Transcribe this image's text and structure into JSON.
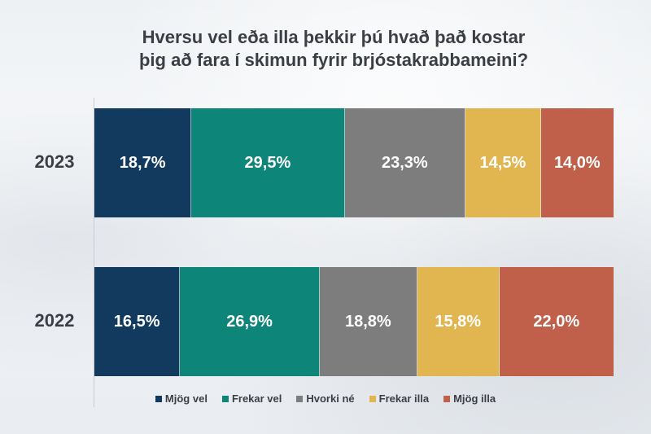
{
  "chart_data": {
    "type": "bar",
    "stacked": true,
    "orientation": "horizontal",
    "title": "Hversu vel eða illa þekkir þú hvað það kostar þig að fara í skimun fyrir brjóstakrabbameini?",
    "title_lines": [
      "Hversu vel eða illa þekkir þú hvað það kostar",
      "þig að fara í skimun fyrir brjóstakrabbameini?"
    ],
    "categories": [
      "2023",
      "2022"
    ],
    "series": [
      {
        "name": "Mjög vel",
        "color": "#123a5e",
        "values": [
          18.7,
          16.5
        ],
        "labels": [
          "18,7%",
          "16,5%"
        ]
      },
      {
        "name": "Frekar vel",
        "color": "#0e8579",
        "values": [
          29.5,
          26.9
        ],
        "labels": [
          "29,5%",
          "26,9%"
        ]
      },
      {
        "name": "Hvorki né",
        "color": "#7d7d7d",
        "values": [
          23.3,
          18.8
        ],
        "labels": [
          "23,3%",
          "18,8%"
        ]
      },
      {
        "name": "Frekar illa",
        "color": "#e1b650",
        "values": [
          14.5,
          15.8
        ],
        "labels": [
          "14,5%",
          "15,8%"
        ]
      },
      {
        "name": "Mjög illa",
        "color": "#c0604a",
        "values": [
          14.0,
          22.0
        ],
        "labels": [
          "14,0%",
          "22,0%"
        ]
      }
    ],
    "xlim": [
      0,
      100
    ],
    "legend_position": "bottom",
    "grid": false
  }
}
